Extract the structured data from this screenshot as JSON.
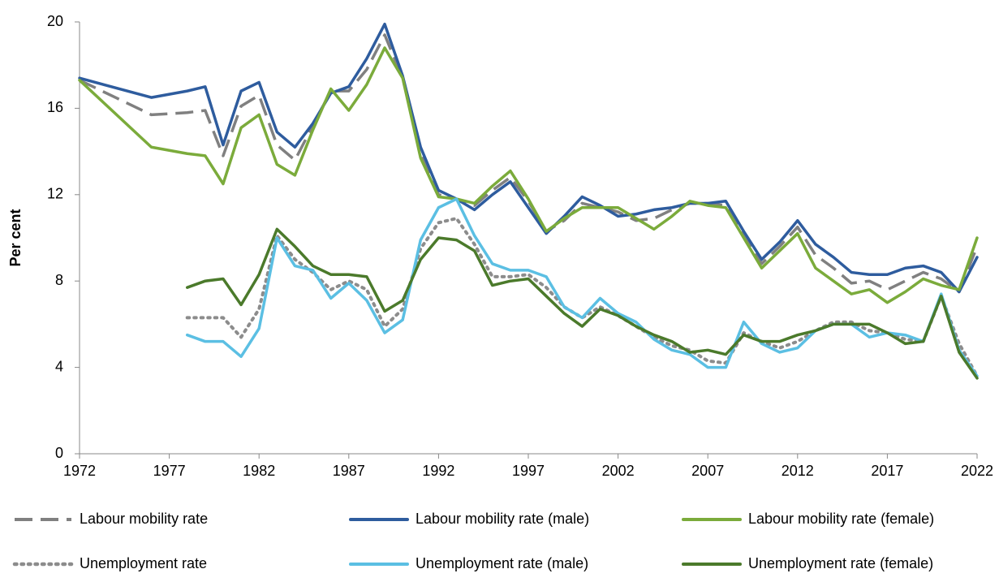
{
  "chart_data": {
    "type": "line",
    "ylabel": "Per cent",
    "x": [
      1972,
      1976,
      1978,
      1979,
      1980,
      1981,
      1982,
      1983,
      1984,
      1985,
      1986,
      1987,
      1988,
      1989,
      1990,
      1991,
      1992,
      1993,
      1994,
      1995,
      1996,
      1997,
      1998,
      1999,
      2000,
      2001,
      2002,
      2003,
      2004,
      2005,
      2006,
      2007,
      2008,
      2009,
      2010,
      2011,
      2012,
      2013,
      2014,
      2015,
      2016,
      2017,
      2018,
      2019,
      2020,
      2021,
      2022
    ],
    "xlim": [
      1972,
      2022
    ],
    "xticks": [
      1972,
      1977,
      1982,
      1987,
      1992,
      1997,
      2002,
      2007,
      2012,
      2017,
      2022
    ],
    "ylim": [
      0,
      20
    ],
    "yticks": [
      0,
      4,
      8,
      12,
      16,
      20
    ],
    "series": [
      {
        "name": "Labour mobility rate",
        "color": "#808080",
        "style": "dashed",
        "values": [
          17.3,
          15.7,
          15.8,
          15.9,
          13.8,
          16.1,
          16.6,
          14.3,
          13.6,
          15.2,
          16.8,
          16.8,
          17.8,
          19.4,
          17.4,
          14.0,
          12.0,
          11.8,
          11.5,
          12.2,
          12.8,
          11.7,
          10.3,
          10.8,
          11.6,
          11.4,
          11.2,
          10.8,
          10.9,
          11.3,
          11.6,
          11.6,
          11.5,
          10.2,
          8.8,
          9.6,
          10.5,
          9.2,
          8.6,
          7.9,
          8.0,
          7.6,
          8.0,
          8.4,
          8.1,
          7.5,
          9.6
        ]
      },
      {
        "name": "Labour mobility rate (male)",
        "color": "#2e5c9e",
        "style": "solid",
        "values": [
          17.4,
          16.5,
          16.8,
          17.0,
          14.3,
          16.8,
          17.2,
          14.9,
          14.2,
          15.3,
          16.7,
          17.0,
          18.3,
          19.9,
          17.5,
          14.2,
          12.2,
          11.8,
          11.3,
          12.0,
          12.6,
          11.4,
          10.2,
          11.0,
          11.9,
          11.5,
          11.0,
          11.1,
          11.3,
          11.4,
          11.6,
          11.6,
          11.7,
          10.3,
          9.0,
          9.8,
          10.8,
          9.7,
          9.1,
          8.4,
          8.3,
          8.3,
          8.6,
          8.7,
          8.4,
          7.5,
          9.1
        ]
      },
      {
        "name": "Labour mobility rate (female)",
        "color": "#7bab3b",
        "style": "solid",
        "values": [
          17.3,
          14.2,
          13.9,
          13.8,
          12.5,
          15.1,
          15.7,
          13.4,
          12.9,
          15.0,
          16.9,
          15.9,
          17.1,
          18.8,
          17.4,
          13.7,
          11.9,
          11.8,
          11.6,
          12.4,
          13.1,
          11.8,
          10.3,
          10.9,
          11.4,
          11.4,
          11.4,
          10.9,
          10.4,
          11.0,
          11.7,
          11.5,
          11.4,
          10.0,
          8.6,
          9.4,
          10.2,
          8.6,
          8.0,
          7.4,
          7.6,
          7.0,
          7.5,
          8.1,
          7.8,
          7.6,
          10.0
        ]
      },
      {
        "name": "Unemployment rate",
        "color": "#8c8c8c",
        "style": "dotted",
        "values": [
          null,
          null,
          6.3,
          6.3,
          6.3,
          5.4,
          6.7,
          10.1,
          9.0,
          8.4,
          7.6,
          8.0,
          7.6,
          5.9,
          6.7,
          9.5,
          10.7,
          10.9,
          9.7,
          8.2,
          8.2,
          8.3,
          7.7,
          6.8,
          6.3,
          6.8,
          6.4,
          5.9,
          5.4,
          5.0,
          4.8,
          4.3,
          4.2,
          5.6,
          5.2,
          4.9,
          5.2,
          5.7,
          6.1,
          6.1,
          5.7,
          5.6,
          5.3,
          5.2,
          7.3,
          5.1,
          3.6
        ]
      },
      {
        "name": "Unemployment rate (male)",
        "color": "#5bbfe3",
        "style": "solid",
        "values": [
          null,
          null,
          5.5,
          5.2,
          5.2,
          4.5,
          5.8,
          10.0,
          8.7,
          8.5,
          7.2,
          7.9,
          7.1,
          5.6,
          6.2,
          9.9,
          11.4,
          11.8,
          10.1,
          8.8,
          8.5,
          8.5,
          8.2,
          6.8,
          6.3,
          7.2,
          6.5,
          6.1,
          5.3,
          4.8,
          4.6,
          4.0,
          4.0,
          6.1,
          5.1,
          4.7,
          4.9,
          5.7,
          6.0,
          6.0,
          5.4,
          5.6,
          5.5,
          5.2,
          7.4,
          4.8,
          3.6
        ]
      },
      {
        "name": "Unemployment rate (female)",
        "color": "#4b7a2b",
        "style": "solid",
        "values": [
          null,
          null,
          7.7,
          8.0,
          8.1,
          6.9,
          8.3,
          10.4,
          9.6,
          8.7,
          8.3,
          8.3,
          8.2,
          6.6,
          7.1,
          9.0,
          10.0,
          9.9,
          9.4,
          7.8,
          8.0,
          8.1,
          7.3,
          6.5,
          5.9,
          6.7,
          6.4,
          5.9,
          5.5,
          5.2,
          4.7,
          4.8,
          4.6,
          5.5,
          5.2,
          5.2,
          5.5,
          5.7,
          6.0,
          6.0,
          6.0,
          5.6,
          5.1,
          5.2,
          7.3,
          4.7,
          3.5
        ]
      }
    ]
  }
}
